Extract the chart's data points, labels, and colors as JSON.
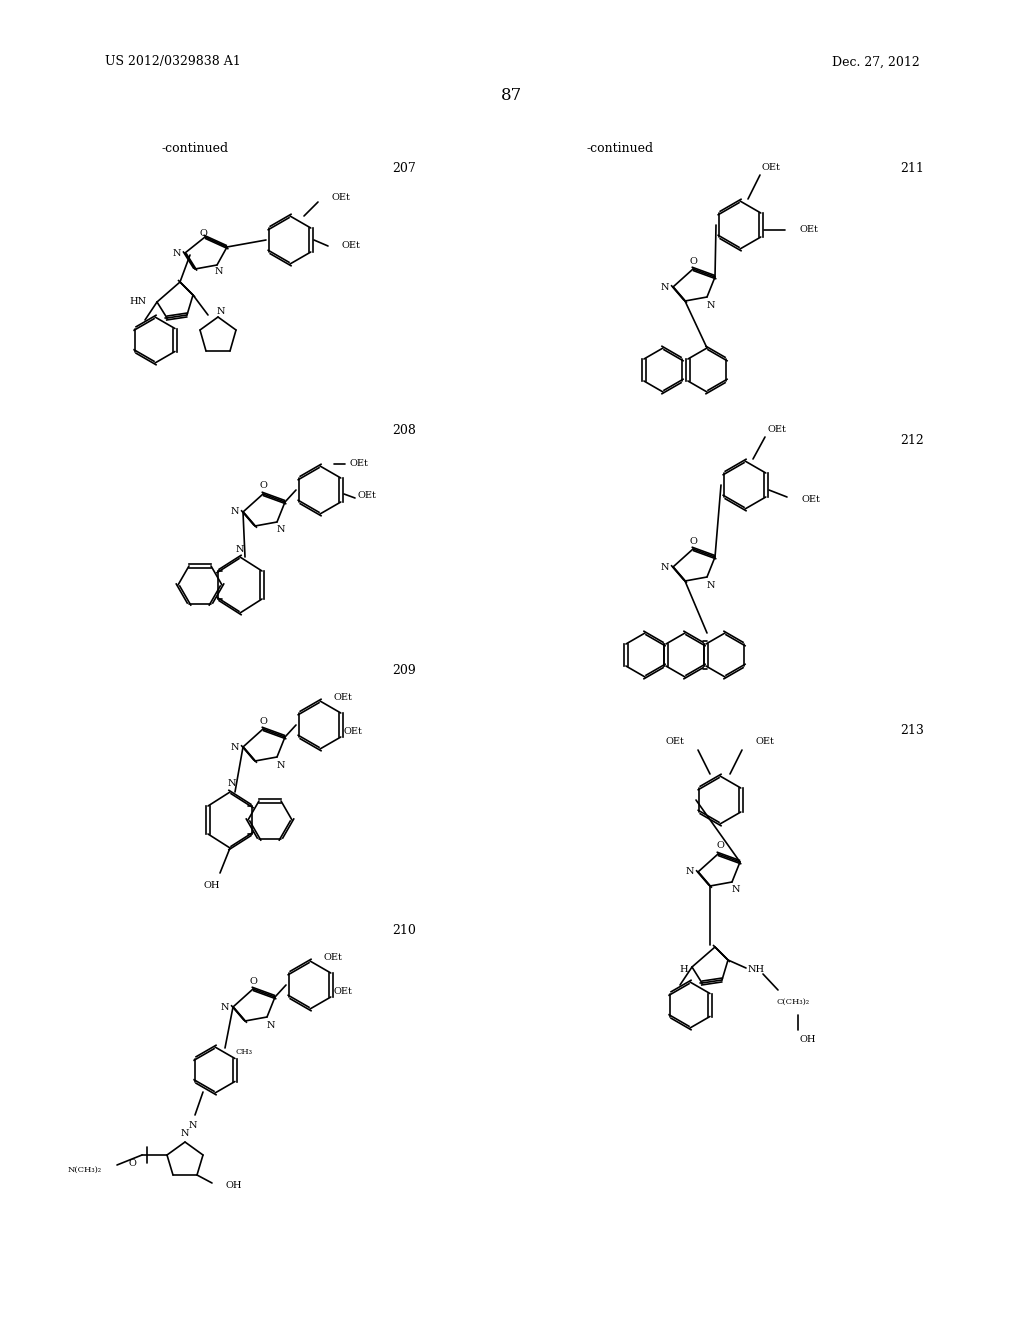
{
  "page_number": "87",
  "patent_left": "US 2012/0329838 A1",
  "patent_right": "Dec. 27, 2012",
  "continued_left": "-continued",
  "continued_right": "-continued",
  "bg_color": "#ffffff",
  "text_color": "#000000",
  "compound_numbers": [
    "207",
    "208",
    "209",
    "210",
    "211",
    "212",
    "213"
  ],
  "font_size_header": 9,
  "font_size_page": 12,
  "font_size_compound": 9,
  "font_size_continued": 9
}
